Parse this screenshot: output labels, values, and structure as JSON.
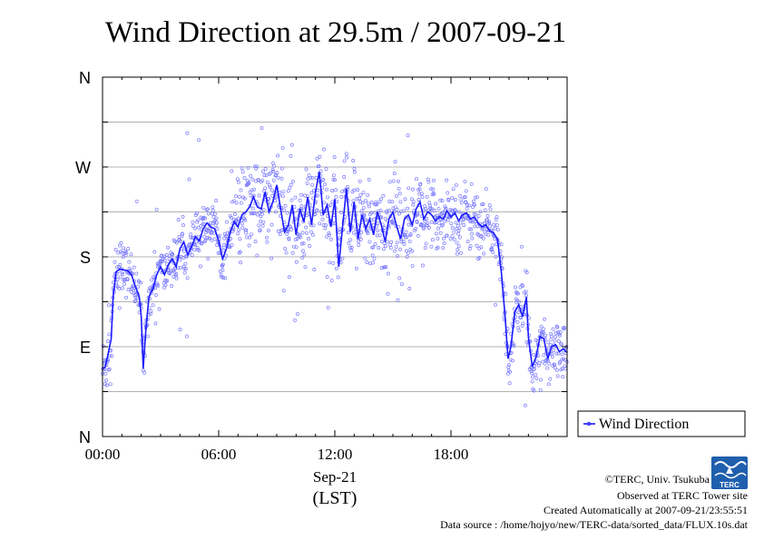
{
  "chart_data": {
    "type": "scatter",
    "title": "Wind Direction at 29.5m / 2007-09-21",
    "xlabel": "(LST)",
    "x_date_label": "Sep-21",
    "x_ticks": [
      "00:00",
      "06:00",
      "12:00",
      "18:00"
    ],
    "x_tick_hours": [
      0,
      6,
      12,
      18
    ],
    "xlim_hours": [
      0,
      24
    ],
    "y_ticks": [
      "N",
      "E",
      "S",
      "W",
      "N"
    ],
    "y_tick_degrees": [
      0,
      90,
      180,
      270,
      360
    ],
    "ylim": [
      0,
      360
    ],
    "grid": true,
    "legend_position": "right-bottom",
    "series": [
      {
        "name": "Wind Direction",
        "color": "#1a1aff",
        "point_color": "#7b7bff",
        "style": "line-with-scatter",
        "line_points": [
          [
            0.0,
            68
          ],
          [
            0.15,
            70
          ],
          [
            0.3,
            84
          ],
          [
            0.45,
            98
          ],
          [
            0.55,
            140
          ],
          [
            0.7,
            165
          ],
          [
            0.9,
            168
          ],
          [
            1.1,
            167
          ],
          [
            1.3,
            166
          ],
          [
            1.5,
            162
          ],
          [
            1.7,
            150
          ],
          [
            1.9,
            140
          ],
          [
            2.0,
            120
          ],
          [
            2.1,
            68
          ],
          [
            2.25,
            110
          ],
          [
            2.4,
            140
          ],
          [
            2.6,
            148
          ],
          [
            2.8,
            162
          ],
          [
            3.0,
            170
          ],
          [
            3.2,
            162
          ],
          [
            3.4,
            172
          ],
          [
            3.6,
            178
          ],
          [
            3.8,
            170
          ],
          [
            4.0,
            188
          ],
          [
            4.2,
            195
          ],
          [
            4.4,
            182
          ],
          [
            4.6,
            190
          ],
          [
            4.8,
            200
          ],
          [
            5.0,
            196
          ],
          [
            5.2,
            208
          ],
          [
            5.4,
            214
          ],
          [
            5.6,
            210
          ],
          [
            5.8,
            208
          ],
          [
            6.0,
            196
          ],
          [
            6.2,
            178
          ],
          [
            6.4,
            188
          ],
          [
            6.6,
            205
          ],
          [
            6.8,
            215
          ],
          [
            7.0,
            210
          ],
          [
            7.2,
            222
          ],
          [
            7.4,
            225
          ],
          [
            7.6,
            230
          ],
          [
            7.8,
            240
          ],
          [
            8.0,
            230
          ],
          [
            8.2,
            228
          ],
          [
            8.4,
            245
          ],
          [
            8.6,
            225
          ],
          [
            8.8,
            235
          ],
          [
            9.0,
            252
          ],
          [
            9.2,
            228
          ],
          [
            9.4,
            205
          ],
          [
            9.6,
            212
          ],
          [
            9.8,
            232
          ],
          [
            10.0,
            202
          ],
          [
            10.2,
            228
          ],
          [
            10.4,
            215
          ],
          [
            10.6,
            240
          ],
          [
            10.8,
            212
          ],
          [
            11.0,
            245
          ],
          [
            11.2,
            265
          ],
          [
            11.4,
            222
          ],
          [
            11.6,
            232
          ],
          [
            11.8,
            210
          ],
          [
            12.0,
            238
          ],
          [
            12.2,
            170
          ],
          [
            12.4,
            210
          ],
          [
            12.6,
            248
          ],
          [
            12.8,
            205
          ],
          [
            13.0,
            235
          ],
          [
            13.2,
            198
          ],
          [
            13.4,
            222
          ],
          [
            13.6,
            208
          ],
          [
            13.8,
            218
          ],
          [
            14.0,
            202
          ],
          [
            14.2,
            225
          ],
          [
            14.4,
            212
          ],
          [
            14.6,
            195
          ],
          [
            14.8,
            218
          ],
          [
            15.0,
            225
          ],
          [
            15.2,
            210
          ],
          [
            15.4,
            198
          ],
          [
            15.6,
            218
          ],
          [
            15.8,
            222
          ],
          [
            16.0,
            212
          ],
          [
            16.2,
            228
          ],
          [
            16.4,
            235
          ],
          [
            16.6,
            218
          ],
          [
            16.8,
            225
          ],
          [
            17.0,
            222
          ],
          [
            17.2,
            216
          ],
          [
            17.4,
            220
          ],
          [
            17.6,
            218
          ],
          [
            17.8,
            226
          ],
          [
            18.0,
            220
          ],
          [
            18.2,
            224
          ],
          [
            18.4,
            216
          ],
          [
            18.6,
            222
          ],
          [
            18.8,
            224
          ],
          [
            19.0,
            218
          ],
          [
            19.2,
            220
          ],
          [
            19.4,
            214
          ],
          [
            19.6,
            210
          ],
          [
            19.8,
            212
          ],
          [
            20.0,
            206
          ],
          [
            20.2,
            204
          ],
          [
            20.4,
            198
          ],
          [
            20.6,
            165
          ],
          [
            20.8,
            120
          ],
          [
            20.95,
            78
          ],
          [
            21.1,
            90
          ],
          [
            21.3,
            125
          ],
          [
            21.5,
            132
          ],
          [
            21.7,
            120
          ],
          [
            21.9,
            140
          ],
          [
            22.0,
            100
          ],
          [
            22.2,
            70
          ],
          [
            22.4,
            80
          ],
          [
            22.6,
            100
          ],
          [
            22.8,
            98
          ],
          [
            23.0,
            78
          ],
          [
            23.2,
            90
          ],
          [
            23.4,
            92
          ],
          [
            23.6,
            85
          ],
          [
            23.8,
            88
          ],
          [
            24.0,
            84
          ]
        ]
      }
    ]
  },
  "footer": {
    "copyright": "©TERC, Univ. Tsukuba",
    "site": "Observed at TERC Tower site",
    "created": "Created Automatically at 2007-09-21/23:55:51",
    "source": "Data source : /home/hojyo/new/TERC-data/sorted_data/FLUX.10s.dat",
    "logo_text": "TERC"
  }
}
